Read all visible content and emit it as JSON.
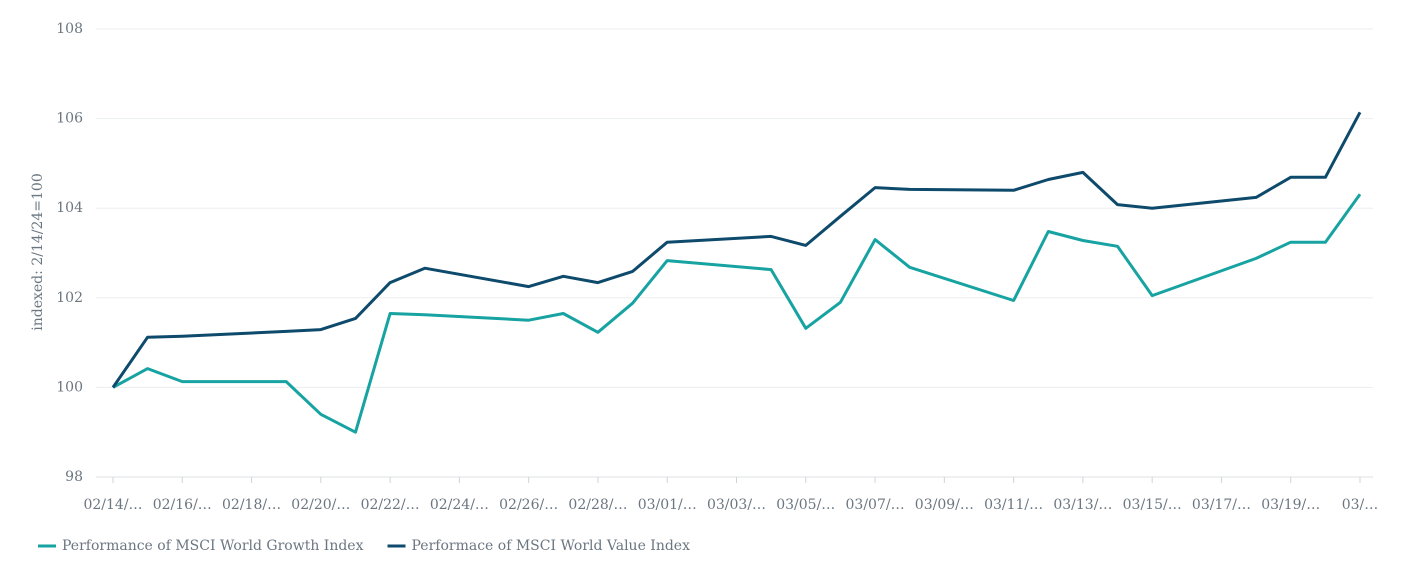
{
  "chart_data": {
    "type": "line",
    "y_label": "indexed: 2/14/24=100",
    "x": [
      "02/14",
      "02/15",
      "02/16",
      "02/19",
      "02/20",
      "02/21",
      "02/22",
      "02/23",
      "02/26",
      "02/27",
      "02/28",
      "02/29",
      "03/01",
      "03/04",
      "03/05",
      "03/06",
      "03/07",
      "03/08",
      "03/11",
      "03/12",
      "03/13",
      "03/14",
      "03/15",
      "03/18",
      "03/19",
      "03/20",
      "03/21"
    ],
    "xlim": [
      "02/14",
      "03/21"
    ],
    "xticks": [
      {
        "value": "02/14",
        "label": "02/14/…"
      },
      {
        "value": "02/16",
        "label": "02/16/…"
      },
      {
        "value": "02/18",
        "label": "02/18/…"
      },
      {
        "value": "02/20",
        "label": "02/20/…"
      },
      {
        "value": "02/22",
        "label": "02/22/…"
      },
      {
        "value": "02/24",
        "label": "02/24/…"
      },
      {
        "value": "02/26",
        "label": "02/26/…"
      },
      {
        "value": "02/28",
        "label": "02/28/…"
      },
      {
        "value": "03/01",
        "label": "03/01/…"
      },
      {
        "value": "03/03",
        "label": "03/03/…"
      },
      {
        "value": "03/05",
        "label": "03/05/…"
      },
      {
        "value": "03/07",
        "label": "03/07/…"
      },
      {
        "value": "03/09",
        "label": "03/09/…"
      },
      {
        "value": "03/11",
        "label": "03/11/…"
      },
      {
        "value": "03/13",
        "label": "03/13/…"
      },
      {
        "value": "03/15",
        "label": "03/15/…"
      },
      {
        "value": "03/17",
        "label": "03/17/…"
      },
      {
        "value": "03/19",
        "label": "03/19/…"
      },
      {
        "value": "03/21",
        "label": "03/…"
      }
    ],
    "ylim": [
      98,
      108
    ],
    "yticks": [
      98,
      100,
      102,
      104,
      106,
      108
    ],
    "grid": true,
    "legend": "bottom-left",
    "series": [
      {
        "name": "Performance of MSCI World Growth Index",
        "color": "#17a3a1",
        "values": [
          100,
          100.42,
          100.13,
          100.13,
          99.4,
          99.0,
          101.65,
          101.62,
          101.5,
          101.65,
          101.23,
          101.88,
          102.83,
          102.63,
          101.32,
          101.9,
          103.3,
          102.68,
          101.94,
          103.48,
          103.28,
          103.15,
          102.05,
          102.88,
          103.24,
          103.24,
          104.31
        ]
      },
      {
        "name": "Performace of MSCI World Value Index",
        "color": "#0e4a6b",
        "values": [
          100,
          101.12,
          101.14,
          101.25,
          101.29,
          101.54,
          102.34,
          102.66,
          102.25,
          102.48,
          102.34,
          102.59,
          103.24,
          103.37,
          103.17,
          103.82,
          104.46,
          104.42,
          104.4,
          104.64,
          104.8,
          104.08,
          104.0,
          104.24,
          104.69,
          104.69,
          106.14
        ]
      }
    ]
  }
}
